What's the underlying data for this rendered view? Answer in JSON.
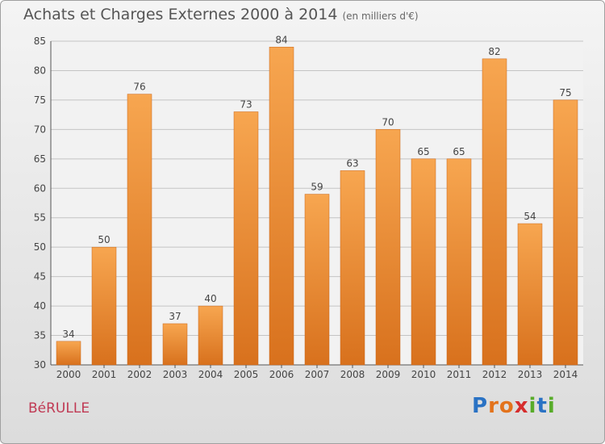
{
  "title": "Achats et Charges Externes 2000 à 2014",
  "subtitle": "(en milliers d'€)",
  "commune": "BéRULLE",
  "brand": {
    "letters": [
      "P",
      "r",
      "o",
      "x",
      "i",
      "t",
      "i"
    ],
    "colors": [
      "#2a72c4",
      "#e3731c",
      "#e3731c",
      "#d62d2d",
      "#58ac2a",
      "#2a72c4",
      "#58ac2a"
    ]
  },
  "chart_data": {
    "type": "bar",
    "categories": [
      "2000",
      "2001",
      "2002",
      "2003",
      "2004",
      "2005",
      "2006",
      "2007",
      "2008",
      "2009",
      "2010",
      "2011",
      "2012",
      "2013",
      "2014"
    ],
    "values": [
      34,
      50,
      76,
      37,
      40,
      73,
      84,
      59,
      63,
      70,
      65,
      65,
      82,
      54,
      75
    ],
    "title": "Achats et Charges Externes 2000 à 2014",
    "ylim": [
      30,
      85
    ],
    "yticks": [
      30,
      35,
      40,
      45,
      50,
      55,
      60,
      65,
      70,
      75,
      80,
      85
    ],
    "grid": true,
    "bar_color": "#f0943a"
  }
}
